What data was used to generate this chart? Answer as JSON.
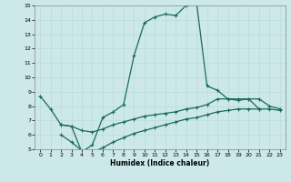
{
  "xlabel": "Humidex (Indice chaleur)",
  "bg_color": "#cce8e8",
  "line_color": "#1a6b5a",
  "xlim": [
    -0.5,
    23.5
  ],
  "ylim": [
    5,
    15
  ],
  "xticks": [
    0,
    1,
    2,
    3,
    4,
    5,
    6,
    7,
    8,
    9,
    10,
    11,
    12,
    13,
    14,
    15,
    16,
    17,
    18,
    19,
    20,
    21,
    22,
    23
  ],
  "yticks": [
    5,
    6,
    7,
    8,
    9,
    10,
    11,
    12,
    13,
    14,
    15
  ],
  "line1_x": [
    0,
    1,
    2,
    3,
    4,
    5,
    6,
    7,
    8,
    9,
    10,
    11,
    12,
    13,
    14,
    15,
    16,
    17,
    18,
    19,
    20,
    21
  ],
  "line1_y": [
    8.7,
    7.8,
    6.7,
    6.6,
    4.8,
    5.3,
    7.2,
    7.6,
    8.1,
    11.5,
    13.8,
    14.2,
    14.4,
    14.3,
    15.0,
    15.2,
    9.4,
    9.1,
    8.5,
    8.5,
    8.5,
    7.8
  ],
  "line2_x": [
    2,
    3,
    4,
    5,
    6,
    7,
    8,
    9,
    10,
    11,
    12,
    13,
    14,
    15,
    16,
    17,
    18,
    19,
    20,
    21,
    22,
    23
  ],
  "line2_y": [
    6.7,
    6.6,
    6.3,
    6.2,
    6.4,
    6.7,
    6.9,
    7.1,
    7.3,
    7.4,
    7.5,
    7.6,
    7.8,
    7.9,
    8.1,
    8.5,
    8.5,
    8.4,
    8.5,
    8.5,
    8.0,
    7.8
  ],
  "line3_x": [
    2,
    3,
    4,
    5,
    6,
    7,
    8,
    9,
    10,
    11,
    12,
    13,
    14,
    15,
    16,
    17,
    18,
    19,
    20,
    21,
    22,
    23
  ],
  "line3_y": [
    6.0,
    5.5,
    4.9,
    4.8,
    5.1,
    5.5,
    5.8,
    6.1,
    6.3,
    6.5,
    6.7,
    6.9,
    7.1,
    7.2,
    7.4,
    7.6,
    7.7,
    7.8,
    7.8,
    7.8,
    7.8,
    7.7
  ]
}
